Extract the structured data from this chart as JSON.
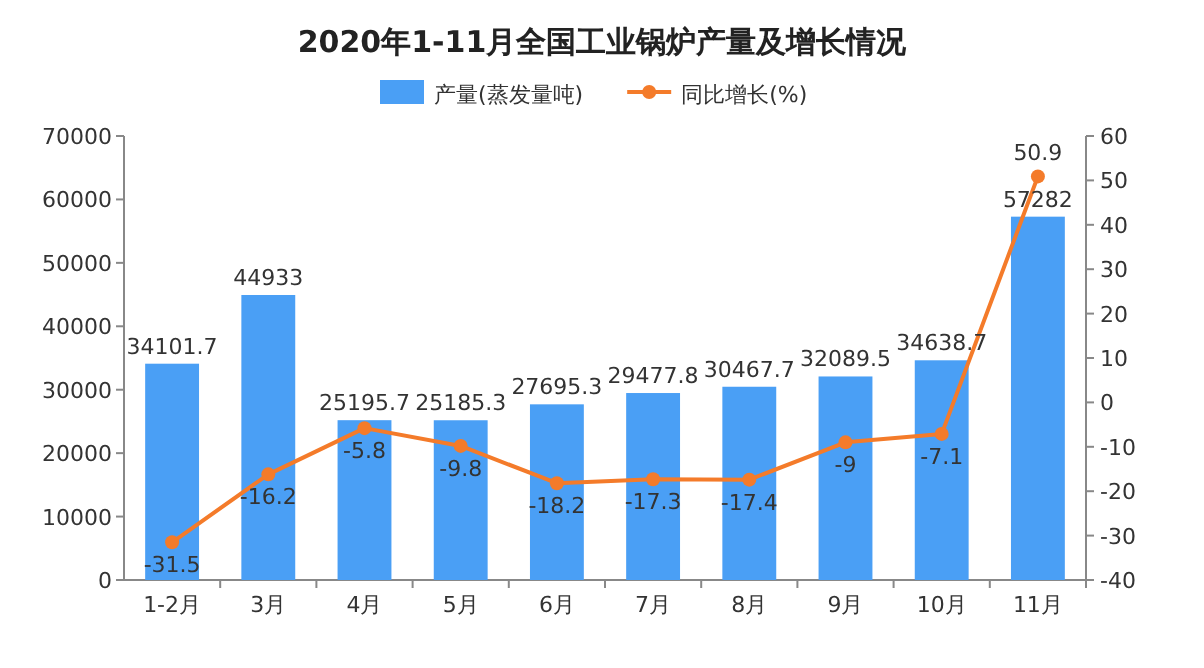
{
  "chart_data": {
    "type": "bar",
    "title": "2020年1-11月全国工业锅炉产量及增长情况",
    "categories": [
      "1-2月",
      "3月",
      "4月",
      "5月",
      "6月",
      "7月",
      "8月",
      "9月",
      "10月",
      "11月"
    ],
    "series": [
      {
        "name": "产量(蒸发量吨)",
        "color": "#4a9ff5",
        "values": [
          34101.7,
          44933,
          25195.7,
          25185.3,
          27695.3,
          29477.8,
          30467.7,
          32089.5,
          34638.7,
          57282
        ]
      },
      {
        "name": "同比增长(%)",
        "type": "line",
        "axis": "y2",
        "color": "#f47b2a",
        "values": [
          -31.5,
          -16.2,
          -5.8,
          -9.8,
          -18.2,
          -17.3,
          -17.4,
          -9,
          -7.1,
          50.9
        ]
      }
    ],
    "ylim": [
      0,
      70000
    ],
    "yticks": [
      0,
      10000,
      20000,
      30000,
      40000,
      50000,
      60000,
      70000
    ],
    "y2lim": [
      -40,
      60
    ],
    "y2ticks": [
      -40,
      -30,
      -20,
      -10,
      0,
      10,
      20,
      30,
      40,
      50,
      60
    ],
    "data_labels": true,
    "legend": "top",
    "marker": "circle",
    "line_style": "solid",
    "grid": false
  }
}
